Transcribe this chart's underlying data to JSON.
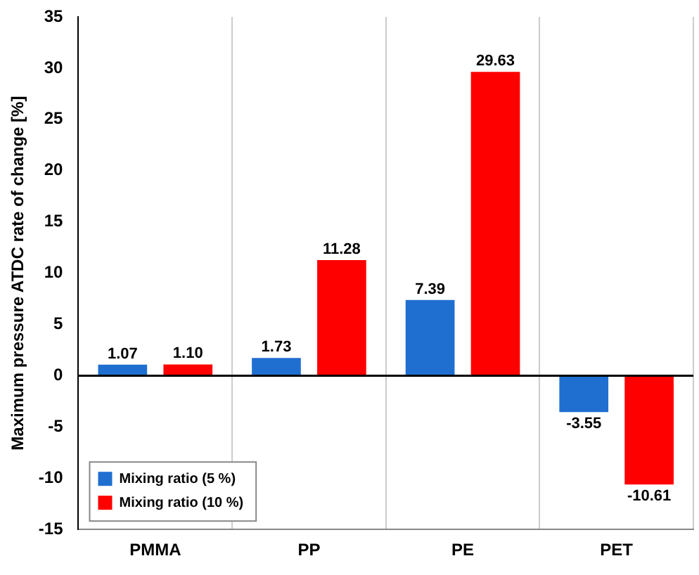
{
  "chart_data": {
    "type": "bar",
    "ylabel": "Maximum pressure ATDC rate of change [%]",
    "categories": [
      "PMMA",
      "PP",
      "PE",
      "PET"
    ],
    "series": [
      {
        "name": "Mixing ratio (5 %)",
        "color": "#1f6fd0",
        "values": [
          1.07,
          1.73,
          7.39,
          -3.55
        ],
        "value_labels": [
          "1.07",
          "1.73",
          "7.39",
          "-3.55"
        ]
      },
      {
        "name": "Mixing ratio (10 %)",
        "color": "#ff0000",
        "values": [
          1.1,
          11.28,
          29.63,
          -10.61
        ],
        "value_labels": [
          "1.10",
          "11.28",
          "29.63",
          "-10.61"
        ]
      }
    ],
    "ylim": [
      -15,
      35
    ],
    "yticks": [
      -15,
      -10,
      -5,
      0,
      5,
      10,
      15,
      20,
      25,
      30,
      35
    ],
    "grid": "x",
    "legend": "bottom left"
  }
}
